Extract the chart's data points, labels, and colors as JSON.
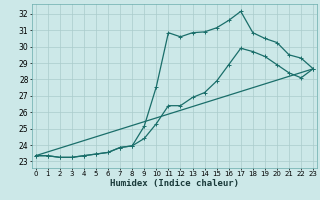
{
  "xlabel": "Humidex (Indice chaleur)",
  "background_color": "#cce8e8",
  "grid_color": "#aacccc",
  "line_color": "#1a6e6a",
  "x_ticks": [
    0,
    1,
    2,
    3,
    4,
    5,
    6,
    7,
    8,
    9,
    10,
    11,
    12,
    13,
    14,
    15,
    16,
    17,
    18,
    19,
    20,
    21,
    22,
    23
  ],
  "y_ticks": [
    23,
    24,
    25,
    26,
    27,
    28,
    29,
    30,
    31,
    32
  ],
  "xlim": [
    -0.3,
    23.3
  ],
  "ylim": [
    22.6,
    32.6
  ],
  "line1_x": [
    0,
    1,
    2,
    3,
    4,
    5,
    6,
    7,
    8,
    9,
    10,
    11,
    12,
    13,
    14,
    15,
    16,
    17,
    18,
    19,
    20,
    21,
    22,
    23
  ],
  "line1_y": [
    23.35,
    23.35,
    23.25,
    23.25,
    23.35,
    23.45,
    23.55,
    23.85,
    23.95,
    25.15,
    27.55,
    30.85,
    30.6,
    30.85,
    30.9,
    31.15,
    31.6,
    32.15,
    30.85,
    30.5,
    30.25,
    29.5,
    29.3,
    28.65
  ],
  "line2_x": [
    0,
    1,
    2,
    3,
    4,
    5,
    6,
    7,
    8,
    9,
    10,
    11,
    12,
    13,
    14,
    15,
    16,
    17,
    18,
    19,
    20,
    21,
    22,
    23
  ],
  "line2_y": [
    23.35,
    23.35,
    23.25,
    23.25,
    23.35,
    23.45,
    23.55,
    23.85,
    23.95,
    24.4,
    25.3,
    26.4,
    26.4,
    26.9,
    27.2,
    27.9,
    28.9,
    29.9,
    29.7,
    29.4,
    28.9,
    28.4,
    28.1,
    28.65
  ],
  "line3_x": [
    0,
    23
  ],
  "line3_y": [
    23.35,
    28.65
  ],
  "marker_size": 3,
  "line_width": 0.9
}
